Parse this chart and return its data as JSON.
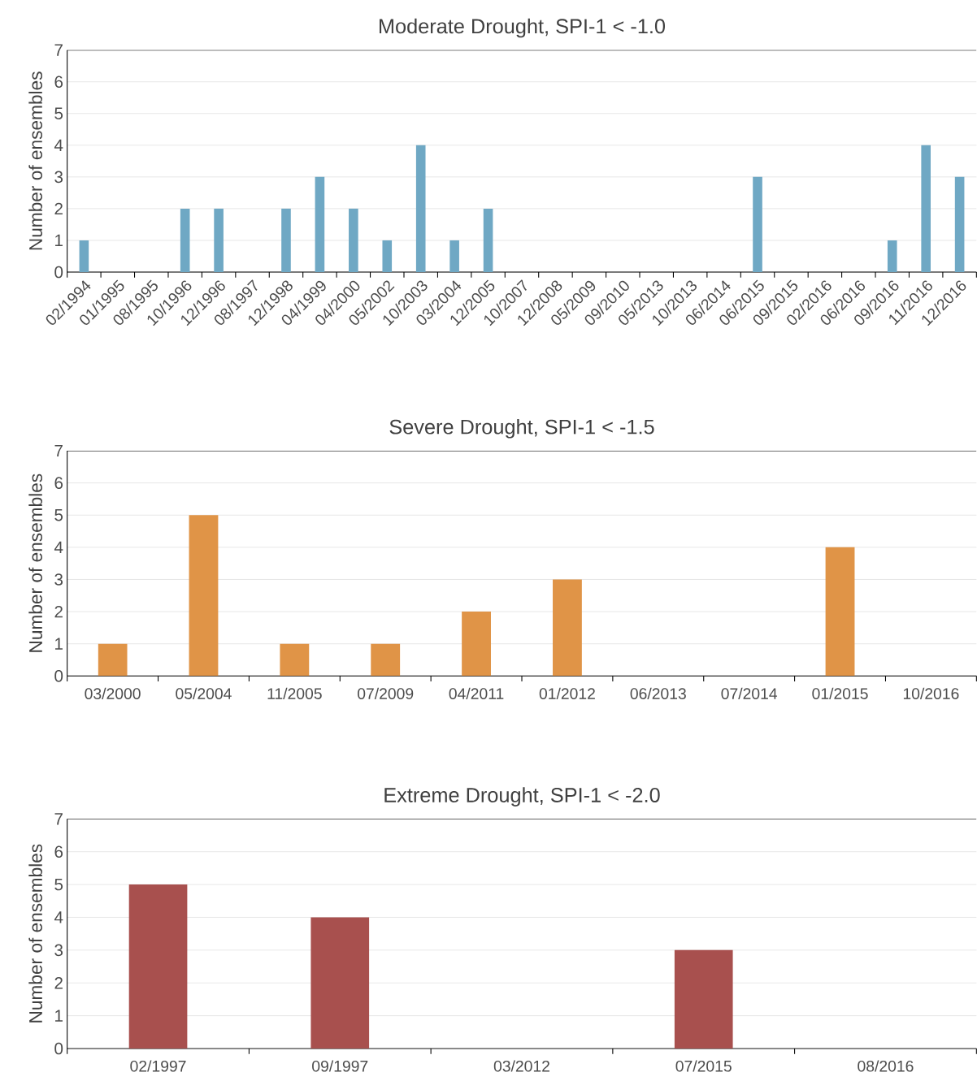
{
  "chart_data": [
    {
      "type": "bar",
      "title": "Moderate Drought, SPI-1 < -1.0",
      "ylabel": "Number of ensembles",
      "categories": [
        "02/1994",
        "01/1995",
        "08/1995",
        "10/1996",
        "12/1996",
        "08/1997",
        "12/1998",
        "04/1999",
        "04/2000",
        "05/2002",
        "10/2003",
        "03/2004",
        "12/2005",
        "10/2007",
        "12/2008",
        "05/2009",
        "09/2010",
        "05/2013",
        "10/2013",
        "06/2014",
        "06/2015",
        "09/2015",
        "02/2016",
        "06/2016",
        "09/2016",
        "11/2016",
        "12/2016"
      ],
      "values": [
        1,
        0,
        0,
        2,
        2,
        0,
        2,
        3,
        2,
        1,
        4,
        1,
        2,
        0,
        0,
        0,
        0,
        0,
        0,
        0,
        3,
        0,
        0,
        0,
        1,
        4,
        3
      ],
      "color": "#6fa8c4",
      "ylim": [
        0,
        7
      ],
      "yticks": [
        0,
        1,
        2,
        3,
        4,
        5,
        6,
        7
      ],
      "grid": "y"
    },
    {
      "type": "bar",
      "title": "Severe Drought, SPI-1 < -1.5",
      "ylabel": "Number of ensembles",
      "categories": [
        "03/2000",
        "05/2004",
        "11/2005",
        "07/2009",
        "04/2011",
        "01/2012",
        "06/2013",
        "07/2014",
        "01/2015",
        "10/2016"
      ],
      "values": [
        1,
        5,
        1,
        1,
        2,
        3,
        0,
        0,
        4,
        0
      ],
      "color": "#e09447",
      "ylim": [
        0,
        7
      ],
      "yticks": [
        0,
        1,
        2,
        3,
        4,
        5,
        6,
        7
      ],
      "grid": "y"
    },
    {
      "type": "bar",
      "title": "Extreme Drought, SPI-1 < -2.0",
      "ylabel": "Number of ensembles",
      "categories": [
        "02/1997",
        "09/1997",
        "03/2012",
        "07/2015",
        "08/2016"
      ],
      "values": [
        5,
        4,
        0,
        3,
        0
      ],
      "color": "#a8504e",
      "ylim": [
        0,
        7
      ],
      "yticks": [
        0,
        1,
        2,
        3,
        4,
        5,
        6,
        7
      ],
      "grid": "y"
    }
  ]
}
